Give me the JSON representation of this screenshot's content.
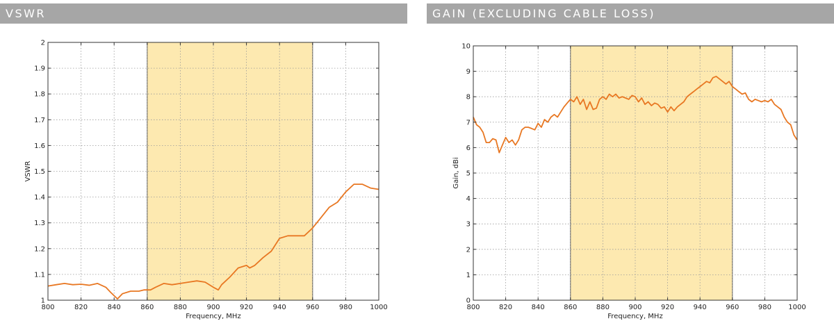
{
  "panels": {
    "vswr": {
      "title": "VSWR"
    },
    "gain": {
      "title": "GAIN (EXCLUDING CABLE LOSS)"
    }
  },
  "colors": {
    "series": "#e87722",
    "band": "#fde9b0",
    "grid": "#9a9a9a",
    "header_bg": "#a6a6a6"
  },
  "chart_data": [
    {
      "type": "line",
      "xlabel": "Frequency, MHz",
      "ylabel": "VSWR",
      "xlim": [
        800,
        1000
      ],
      "ylim": [
        1,
        2
      ],
      "xticks": [
        800,
        820,
        840,
        860,
        880,
        900,
        920,
        940,
        960,
        980,
        1000
      ],
      "xtick_labels": [
        "800",
        "820",
        "840",
        "860",
        "880",
        "900",
        "920",
        "940",
        "960",
        "980",
        "1000"
      ],
      "yticks": [
        1,
        1.1,
        1.2,
        1.3,
        1.4,
        1.5,
        1.6,
        1.7,
        1.8,
        1.9,
        2
      ],
      "ytick_labels": [
        "1",
        "1.1",
        "1.2",
        "1.3",
        "1.4",
        "1.5",
        "1.6",
        "1.7",
        "1.8",
        "1.9",
        "2"
      ],
      "grid": true,
      "highlight_band": [
        860,
        960
      ],
      "series": [
        {
          "x": [
            800,
            805,
            810,
            815,
            820,
            825,
            830,
            835,
            838,
            842,
            845,
            850,
            855,
            858,
            862,
            865,
            870,
            875,
            880,
            885,
            890,
            895,
            900,
            903,
            905,
            910,
            915,
            920,
            922,
            925,
            930,
            935,
            940,
            945,
            950,
            955,
            960,
            965,
            970,
            975,
            980,
            985,
            990,
            995,
            1000
          ],
          "y": [
            1.055,
            1.06,
            1.065,
            1.06,
            1.062,
            1.058,
            1.065,
            1.05,
            1.03,
            1.005,
            1.025,
            1.035,
            1.035,
            1.04,
            1.04,
            1.05,
            1.065,
            1.06,
            1.065,
            1.07,
            1.075,
            1.07,
            1.05,
            1.04,
            1.06,
            1.09,
            1.125,
            1.135,
            1.125,
            1.135,
            1.165,
            1.19,
            1.24,
            1.25,
            1.25,
            1.25,
            1.28,
            1.32,
            1.36,
            1.38,
            1.42,
            1.45,
            1.45,
            1.435,
            1.43
          ]
        }
      ]
    },
    {
      "type": "line",
      "xlabel": "Frequency, MHz",
      "ylabel": "Gain, dBi",
      "xlim": [
        800,
        1000
      ],
      "ylim": [
        0,
        10
      ],
      "xticks": [
        800,
        820,
        840,
        860,
        880,
        900,
        920,
        940,
        960,
        980,
        1000
      ],
      "xtick_labels": [
        "800",
        "820",
        "840",
        "860",
        "880",
        "900",
        "920",
        "940",
        "960",
        "980",
        "1000"
      ],
      "yticks": [
        0,
        1,
        2,
        3,
        4,
        5,
        6,
        7,
        8,
        9,
        10
      ],
      "ytick_labels": [
        "0",
        "1",
        "2",
        "3",
        "4",
        "5",
        "6",
        "7",
        "8",
        "9",
        "10"
      ],
      "grid": true,
      "highlight_band": [
        860,
        960
      ],
      "series": [
        {
          "x": [
            800,
            802,
            804,
            806,
            808,
            810,
            812,
            814,
            816,
            818,
            820,
            822,
            824,
            826,
            828,
            830,
            832,
            834,
            836,
            838,
            840,
            842,
            844,
            846,
            848,
            850,
            852,
            854,
            856,
            858,
            860,
            862,
            864,
            866,
            868,
            870,
            872,
            874,
            876,
            878,
            880,
            882,
            884,
            886,
            888,
            890,
            892,
            894,
            896,
            898,
            900,
            902,
            904,
            906,
            908,
            910,
            912,
            914,
            916,
            918,
            920,
            922,
            924,
            926,
            928,
            930,
            932,
            934,
            936,
            938,
            940,
            942,
            944,
            946,
            948,
            950,
            952,
            954,
            956,
            958,
            960,
            962,
            964,
            966,
            968,
            970,
            972,
            974,
            976,
            978,
            980,
            982,
            984,
            986,
            988,
            990,
            992,
            994,
            996,
            998,
            1000
          ],
          "y": [
            7.2,
            6.9,
            6.8,
            6.6,
            6.2,
            6.2,
            6.35,
            6.3,
            5.8,
            6.1,
            6.4,
            6.2,
            6.3,
            6.1,
            6.3,
            6.7,
            6.8,
            6.8,
            6.75,
            6.7,
            6.95,
            6.8,
            7.1,
            7.0,
            7.2,
            7.3,
            7.2,
            7.4,
            7.6,
            7.75,
            7.9,
            7.8,
            8.0,
            7.7,
            7.9,
            7.5,
            7.8,
            7.5,
            7.55,
            7.9,
            8.0,
            7.9,
            8.1,
            8.0,
            8.1,
            7.95,
            8.0,
            7.95,
            7.9,
            8.05,
            8.0,
            7.8,
            7.95,
            7.7,
            7.8,
            7.65,
            7.75,
            7.7,
            7.55,
            7.6,
            7.4,
            7.6,
            7.45,
            7.6,
            7.7,
            7.8,
            8.0,
            8.1,
            8.2,
            8.3,
            8.4,
            8.5,
            8.6,
            8.55,
            8.75,
            8.8,
            8.7,
            8.6,
            8.5,
            8.6,
            8.4,
            8.3,
            8.2,
            8.1,
            8.15,
            7.9,
            7.8,
            7.9,
            7.85,
            7.8,
            7.85,
            7.8,
            7.9,
            7.7,
            7.6,
            7.5,
            7.2,
            7.0,
            6.9,
            6.5,
            6.3
          ]
        }
      ]
    }
  ]
}
